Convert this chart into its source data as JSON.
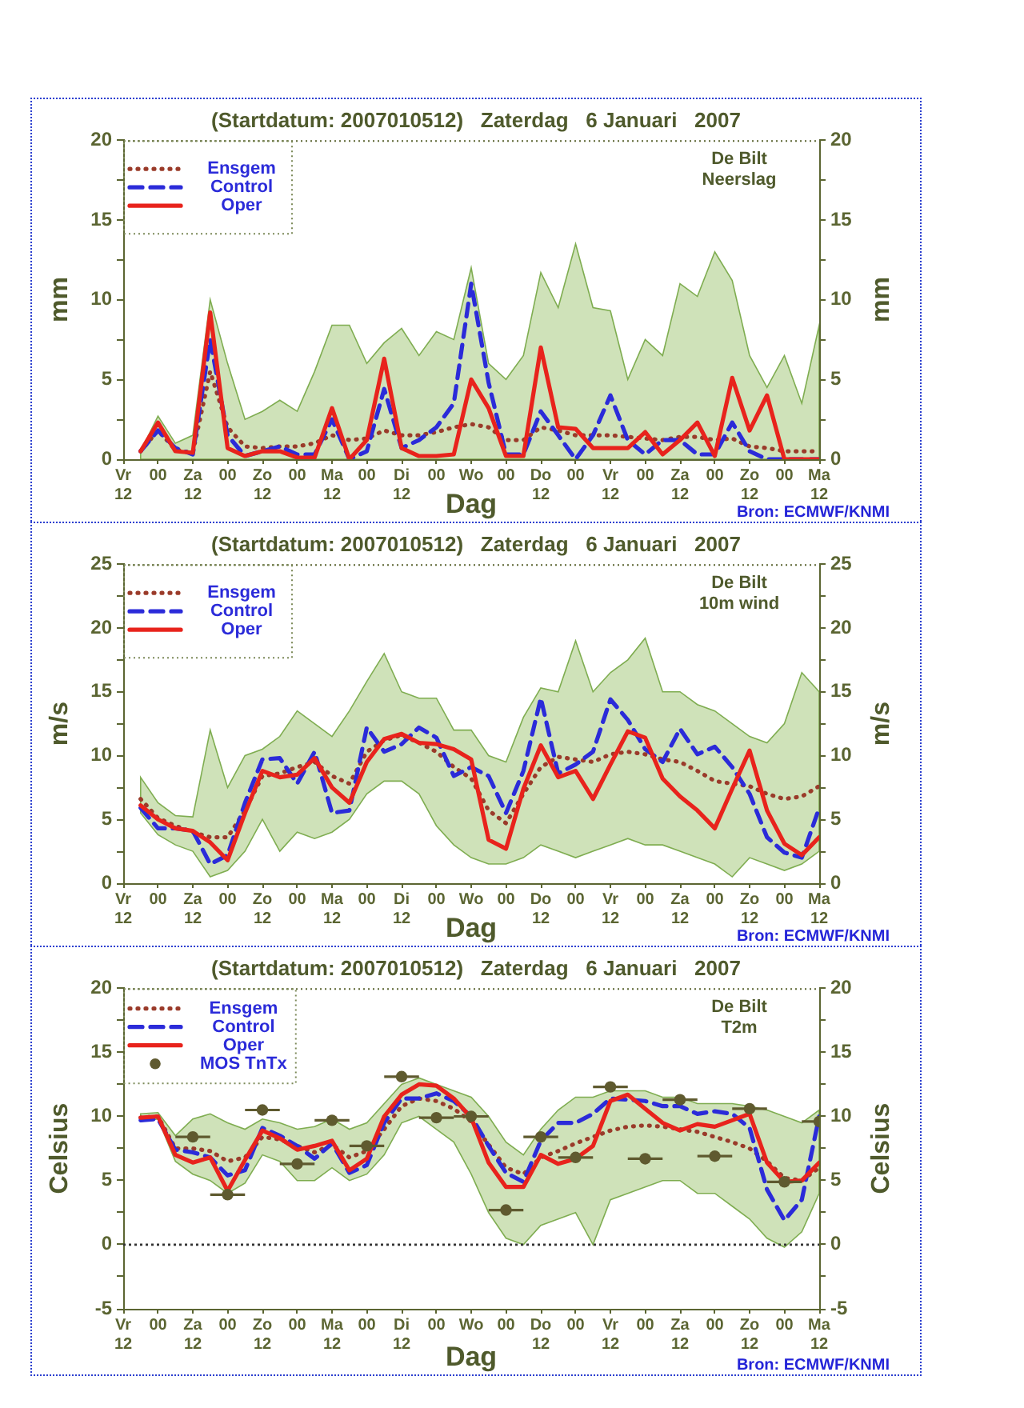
{
  "chart_data": [
    {
      "type": "line",
      "title": "(Startdatum: 2007010512)   Zaterdag   6 Januari   2007",
      "xlabel": "Dag",
      "ylabel": "mm",
      "y2label": "mm",
      "annotations": [
        "De Bilt",
        "Neerslag",
        "Bron: ECMWF/KNMI"
      ],
      "legend": "top left",
      "x": [
        "2007-01-05T18:00",
        "2007-01-06T00:00",
        "2007-01-06T06:00",
        "2007-01-06T12:00",
        "2007-01-06T18:00",
        "2007-01-07T00:00",
        "2007-01-07T06:00",
        "2007-01-07T12:00",
        "2007-01-07T18:00",
        "2007-01-08T00:00",
        "2007-01-08T06:00",
        "2007-01-08T12:00",
        "2007-01-08T18:00",
        "2007-01-09T00:00",
        "2007-01-09T06:00",
        "2007-01-09T12:00",
        "2007-01-09T18:00",
        "2007-01-10T00:00",
        "2007-01-10T06:00",
        "2007-01-10T12:00",
        "2007-01-10T18:00",
        "2007-01-11T00:00",
        "2007-01-11T06:00",
        "2007-01-11T12:00",
        "2007-01-11T18:00",
        "2007-01-12T00:00",
        "2007-01-12T06:00",
        "2007-01-12T12:00",
        "2007-01-12T18:00",
        "2007-01-13T00:00",
        "2007-01-13T06:00",
        "2007-01-13T12:00",
        "2007-01-13T18:00",
        "2007-01-14T00:00",
        "2007-01-14T06:00",
        "2007-01-14T12:00",
        "2007-01-14T18:00",
        "2007-01-15T00:00",
        "2007-01-15T06:00",
        "2007-01-15T12:00"
      ],
      "xlim": [
        "2007-01-05T12:00",
        "2007-01-15T12:00"
      ],
      "xticks": [
        {
          "value": "2007-01-05T12:00",
          "label": "Vr\n12"
        },
        {
          "value": "2007-01-06T00:00",
          "label": "00"
        },
        {
          "value": "2007-01-06T12:00",
          "label": "Za\n12"
        },
        {
          "value": "2007-01-07T00:00",
          "label": "00"
        },
        {
          "value": "2007-01-07T12:00",
          "label": "Zo\n12"
        },
        {
          "value": "2007-01-08T00:00",
          "label": "00"
        },
        {
          "value": "2007-01-08T12:00",
          "label": "Ma\n12"
        },
        {
          "value": "2007-01-09T00:00",
          "label": "00"
        },
        {
          "value": "2007-01-09T12:00",
          "label": "Di\n12"
        },
        {
          "value": "2007-01-10T00:00",
          "label": "00"
        },
        {
          "value": "2007-01-10T12:00",
          "label": "Wo"
        },
        {
          "value": "2007-01-11T00:00",
          "label": "00"
        },
        {
          "value": "2007-01-11T12:00",
          "label": "Do\n12"
        },
        {
          "value": "2007-01-12T00:00",
          "label": "00"
        },
        {
          "value": "2007-01-12T12:00",
          "label": "Vr\n12"
        },
        {
          "value": "2007-01-13T00:00",
          "label": "00"
        },
        {
          "value": "2007-01-13T12:00",
          "label": "Za\n12"
        },
        {
          "value": "2007-01-14T00:00",
          "label": "00"
        },
        {
          "value": "2007-01-14T12:00",
          "label": "Zo\n12"
        },
        {
          "value": "2007-01-15T00:00",
          "label": "00"
        },
        {
          "value": "2007-01-15T12:00",
          "label": "Ma\n12"
        }
      ],
      "ylim": [
        0,
        20
      ],
      "yticks": [
        0,
        {
          "value": 2.5,
          "label": null
        },
        5,
        {
          "value": 7.5,
          "label": null
        },
        10,
        {
          "value": 12.5,
          "label": null
        },
        15,
        {
          "value": 17.5,
          "label": null
        },
        20
      ],
      "y2lim": [
        0,
        20
      ],
      "y2ticks": [
        0,
        {
          "value": 2.5,
          "label": null
        },
        5,
        {
          "value": 7.5,
          "label": null
        },
        10,
        {
          "value": 12.5,
          "label": null
        },
        15,
        {
          "value": 17.5,
          "label": null
        },
        20
      ],
      "series": [
        {
          "name": "Ensgem",
          "color": "#9a3b2a",
          "line_style": "dotted",
          "values": [
            0.5,
            1.8,
            0.6,
            0.4,
            5.5,
            2.0,
            0.8,
            0.7,
            0.8,
            0.8,
            1.0,
            1.5,
            1.2,
            1.3,
            1.8,
            1.5,
            1.5,
            1.7,
            2.0,
            2.2,
            2.0,
            1.2,
            1.2,
            2.0,
            1.8,
            1.5,
            1.5,
            1.5,
            1.4,
            1.3,
            1.2,
            1.4,
            1.4,
            1.2,
            1.3,
            0.8,
            0.7,
            0.5,
            0.5,
            0.5
          ],
          "lower": [
            0,
            0,
            0,
            0,
            0,
            0,
            0,
            0,
            0,
            0,
            0,
            0,
            0,
            0,
            0,
            0,
            0,
            0,
            0,
            0,
            0,
            0,
            0,
            0,
            0,
            0,
            0,
            0,
            0,
            0,
            0,
            0,
            0,
            0,
            0,
            0,
            0,
            0,
            0,
            0
          ],
          "upper": [
            0.5,
            2.7,
            1.0,
            1.5,
            10.0,
            6.0,
            2.5,
            3.0,
            3.7,
            3.0,
            5.5,
            8.4,
            8.4,
            6.0,
            7.3,
            8.2,
            6.5,
            8.0,
            7.5,
            12.0,
            6.0,
            5.0,
            6.5,
            11.7,
            9.5,
            13.5,
            9.5,
            9.3,
            5.0,
            7.5,
            6.5,
            11.0,
            10.2,
            13.0,
            11.2,
            6.5,
            4.5,
            6.5,
            3.5,
            8.4
          ]
        },
        {
          "name": "Control",
          "color": "#2b2bd9",
          "line_style": "dashed",
          "values": [
            0.5,
            1.8,
            0.7,
            0.3,
            7.5,
            1.5,
            0.2,
            0.5,
            0.8,
            0.3,
            0.3,
            2.5,
            0,
            0.5,
            4.4,
            0.7,
            1.2,
            2.0,
            3.5,
            11.0,
            4.8,
            0.3,
            0.3,
            3.0,
            1.5,
            0,
            1.5,
            4.0,
            1.2,
            0.3,
            1.2,
            1.2,
            0.3,
            0.3,
            2.3,
            0.5,
            0,
            0,
            0,
            0
          ]
        },
        {
          "name": "Oper",
          "color": "#e8231c",
          "line_style": "solid",
          "values": [
            0.5,
            2.3,
            0.5,
            0.4,
            9.2,
            0.7,
            0.2,
            0.5,
            0.5,
            0.1,
            0.1,
            3.2,
            0,
            1.2,
            6.3,
            0.7,
            0.2,
            0.2,
            0.3,
            5.0,
            3.2,
            0.2,
            0.2,
            7.0,
            2.0,
            1.9,
            0.7,
            0.7,
            0.7,
            1.7,
            0.3,
            1.2,
            2.3,
            0.2,
            5.1,
            1.8,
            4.0,
            0,
            0,
            0
          ]
        }
      ]
    },
    {
      "type": "line",
      "title": "(Startdatum: 2007010512)   Zaterdag   6 Januari   2007",
      "xlabel": "Dag",
      "ylabel": "m/s",
      "y2label": "m/s",
      "annotations": [
        "De Bilt",
        "10m wind",
        "Bron: ECMWF/KNMI"
      ],
      "legend": "top left",
      "x": [
        "2007-01-05T18:00",
        "2007-01-06T00:00",
        "2007-01-06T06:00",
        "2007-01-06T12:00",
        "2007-01-06T18:00",
        "2007-01-07T00:00",
        "2007-01-07T06:00",
        "2007-01-07T12:00",
        "2007-01-07T18:00",
        "2007-01-08T00:00",
        "2007-01-08T06:00",
        "2007-01-08T12:00",
        "2007-01-08T18:00",
        "2007-01-09T00:00",
        "2007-01-09T06:00",
        "2007-01-09T12:00",
        "2007-01-09T18:00",
        "2007-01-10T00:00",
        "2007-01-10T06:00",
        "2007-01-10T12:00",
        "2007-01-10T18:00",
        "2007-01-11T00:00",
        "2007-01-11T06:00",
        "2007-01-11T12:00",
        "2007-01-11T18:00",
        "2007-01-12T00:00",
        "2007-01-12T06:00",
        "2007-01-12T12:00",
        "2007-01-12T18:00",
        "2007-01-13T00:00",
        "2007-01-13T06:00",
        "2007-01-13T12:00",
        "2007-01-13T18:00",
        "2007-01-14T00:00",
        "2007-01-14T06:00",
        "2007-01-14T12:00",
        "2007-01-14T18:00",
        "2007-01-15T00:00",
        "2007-01-15T06:00",
        "2007-01-15T12:00"
      ],
      "xlim": [
        "2007-01-05T12:00",
        "2007-01-15T12:00"
      ],
      "xticks": [
        {
          "value": "2007-01-05T12:00",
          "label": "Vr\n12"
        },
        {
          "value": "2007-01-06T00:00",
          "label": "00"
        },
        {
          "value": "2007-01-06T12:00",
          "label": "Za\n12"
        },
        {
          "value": "2007-01-07T00:00",
          "label": "00"
        },
        {
          "value": "2007-01-07T12:00",
          "label": "Zo\n12"
        },
        {
          "value": "2007-01-08T00:00",
          "label": "00"
        },
        {
          "value": "2007-01-08T12:00",
          "label": "Ma\n12"
        },
        {
          "value": "2007-01-09T00:00",
          "label": "00"
        },
        {
          "value": "2007-01-09T12:00",
          "label": "Di\n12"
        },
        {
          "value": "2007-01-10T00:00",
          "label": "00"
        },
        {
          "value": "2007-01-10T12:00",
          "label": "Wo"
        },
        {
          "value": "2007-01-11T00:00",
          "label": "00"
        },
        {
          "value": "2007-01-11T12:00",
          "label": "Do\n12"
        },
        {
          "value": "2007-01-12T00:00",
          "label": "00"
        },
        {
          "value": "2007-01-12T12:00",
          "label": "Vr\n12"
        },
        {
          "value": "2007-01-13T00:00",
          "label": "00"
        },
        {
          "value": "2007-01-13T12:00",
          "label": "Za\n12"
        },
        {
          "value": "2007-01-14T00:00",
          "label": "00"
        },
        {
          "value": "2007-01-14T12:00",
          "label": "Zo\n12"
        },
        {
          "value": "2007-01-15T00:00",
          "label": "00"
        },
        {
          "value": "2007-01-15T12:00",
          "label": "Ma\n12"
        }
      ],
      "ylim": [
        0,
        25
      ],
      "yticks": [
        0,
        {
          "value": 2.5,
          "label": null
        },
        5,
        {
          "value": 7.5,
          "label": null
        },
        10,
        {
          "value": 12.5,
          "label": null
        },
        15,
        {
          "value": 17.5,
          "label": null
        },
        20,
        {
          "value": 22.5,
          "label": null
        },
        25
      ],
      "y2lim": [
        0,
        25
      ],
      "y2ticks": [
        0,
        {
          "value": 2.5,
          "label": null
        },
        5,
        {
          "value": 7.5,
          "label": null
        },
        10,
        {
          "value": 12.5,
          "label": null
        },
        15,
        {
          "value": 17.5,
          "label": null
        },
        20,
        {
          "value": 22.5,
          "label": null
        },
        25
      ],
      "series": [
        {
          "name": "Ensgem",
          "color": "#9a3b2a",
          "line_style": "dotted",
          "values": [
            6.6,
            5.1,
            4.5,
            4.0,
            3.6,
            3.6,
            5.7,
            8.4,
            8.6,
            9.1,
            9.5,
            8.4,
            7.8,
            10.3,
            11.2,
            11.6,
            11.0,
            10.3,
            9.1,
            8.2,
            5.7,
            4.7,
            7.0,
            9.1,
            9.9,
            9.7,
            9.5,
            10.1,
            10.3,
            10.1,
            9.7,
            9.5,
            8.8,
            8.0,
            7.8,
            7.6,
            7.0,
            6.6,
            6.8,
            7.6
          ],
          "lower": [
            5.5,
            3.8,
            3.0,
            2.5,
            0.5,
            1.0,
            2.5,
            5.0,
            2.5,
            4.0,
            3.5,
            4.0,
            5.0,
            7.0,
            8.0,
            8.0,
            7.0,
            4.5,
            3.0,
            2.0,
            1.5,
            1.5,
            2.0,
            3.0,
            2.5,
            2.0,
            2.5,
            3.0,
            3.5,
            3.0,
            3.0,
            2.5,
            2.0,
            1.5,
            0.5,
            2.0,
            1.5,
            1.0,
            1.5,
            2.5
          ],
          "upper": [
            8.3,
            6.3,
            5.3,
            5.2,
            12.0,
            7.5,
            10.0,
            10.5,
            11.5,
            13.5,
            12.5,
            11.5,
            13.5,
            15.8,
            18.0,
            15.0,
            14.5,
            14.5,
            12.0,
            12.0,
            10.0,
            9.5,
            13.0,
            15.3,
            15.0,
            19.0,
            15.0,
            16.5,
            17.5,
            19.2,
            15.0,
            15.0,
            14.0,
            13.5,
            12.5,
            11.5,
            11.0,
            12.5,
            16.5,
            15.0
          ]
        },
        {
          "name": "Control",
          "color": "#2b2bd9",
          "line_style": "dashed",
          "values": [
            5.9,
            4.3,
            4.3,
            4.1,
            1.5,
            2.2,
            6.3,
            9.7,
            9.8,
            7.8,
            10.3,
            5.5,
            5.7,
            12.2,
            10.3,
            10.9,
            12.2,
            11.4,
            8.4,
            9.1,
            8.4,
            5.5,
            8.8,
            14.5,
            8.6,
            9.3,
            10.3,
            14.4,
            12.8,
            10.5,
            9.5,
            12.1,
            10.1,
            10.7,
            9.1,
            7.0,
            3.6,
            2.4,
            2.0,
            5.9
          ]
        },
        {
          "name": "Oper",
          "color": "#e8231c",
          "line_style": "solid",
          "values": [
            6.1,
            5.0,
            4.3,
            4.1,
            3.2,
            1.8,
            5.5,
            8.8,
            8.3,
            8.5,
            9.8,
            7.5,
            6.3,
            9.5,
            11.3,
            11.7,
            11.0,
            10.9,
            10.5,
            9.7,
            3.4,
            2.7,
            7.4,
            10.8,
            8.3,
            8.8,
            6.6,
            9.3,
            11.9,
            11.4,
            8.2,
            6.8,
            5.7,
            4.3,
            7.4,
            10.4,
            5.7,
            3.1,
            2.2,
            3.6
          ]
        }
      ]
    },
    {
      "type": "line",
      "title": "(Startdatum: 2007010512)   Zaterdag   6 Januari   2007",
      "xlabel": "Dag",
      "ylabel": "Celsius",
      "y2label": "Celsius",
      "annotations": [
        "De Bilt",
        "T2m",
        "Bron: ECMWF/KNMI"
      ],
      "legend": "top left",
      "x": [
        "2007-01-05T18:00",
        "2007-01-06T00:00",
        "2007-01-06T06:00",
        "2007-01-06T12:00",
        "2007-01-06T18:00",
        "2007-01-07T00:00",
        "2007-01-07T06:00",
        "2007-01-07T12:00",
        "2007-01-07T18:00",
        "2007-01-08T00:00",
        "2007-01-08T06:00",
        "2007-01-08T12:00",
        "2007-01-08T18:00",
        "2007-01-09T00:00",
        "2007-01-09T06:00",
        "2007-01-09T12:00",
        "2007-01-09T18:00",
        "2007-01-10T00:00",
        "2007-01-10T06:00",
        "2007-01-10T12:00",
        "2007-01-10T18:00",
        "2007-01-11T00:00",
        "2007-01-11T06:00",
        "2007-01-11T12:00",
        "2007-01-11T18:00",
        "2007-01-12T00:00",
        "2007-01-12T06:00",
        "2007-01-12T12:00",
        "2007-01-12T18:00",
        "2007-01-13T00:00",
        "2007-01-13T06:00",
        "2007-01-13T12:00",
        "2007-01-13T18:00",
        "2007-01-14T00:00",
        "2007-01-14T06:00",
        "2007-01-14T12:00",
        "2007-01-14T18:00",
        "2007-01-15T00:00",
        "2007-01-15T06:00",
        "2007-01-15T12:00"
      ],
      "xlim": [
        "2007-01-05T12:00",
        "2007-01-15T12:00"
      ],
      "xticks": [
        {
          "value": "2007-01-05T12:00",
          "label": "Vr\n12"
        },
        {
          "value": "2007-01-06T00:00",
          "label": "00"
        },
        {
          "value": "2007-01-06T12:00",
          "label": "Za\n12"
        },
        {
          "value": "2007-01-07T00:00",
          "label": "00"
        },
        {
          "value": "2007-01-07T12:00",
          "label": "Zo\n12"
        },
        {
          "value": "2007-01-08T00:00",
          "label": "00"
        },
        {
          "value": "2007-01-08T12:00",
          "label": "Ma\n12"
        },
        {
          "value": "2007-01-09T00:00",
          "label": "00"
        },
        {
          "value": "2007-01-09T12:00",
          "label": "Di\n12"
        },
        {
          "value": "2007-01-10T00:00",
          "label": "00"
        },
        {
          "value": "2007-01-10T12:00",
          "label": "Wo"
        },
        {
          "value": "2007-01-11T00:00",
          "label": "00"
        },
        {
          "value": "2007-01-11T12:00",
          "label": "Do\n12"
        },
        {
          "value": "2007-01-12T00:00",
          "label": "00"
        },
        {
          "value": "2007-01-12T12:00",
          "label": "Vr\n12"
        },
        {
          "value": "2007-01-13T00:00",
          "label": "00"
        },
        {
          "value": "2007-01-13T12:00",
          "label": "Za\n12"
        },
        {
          "value": "2007-01-14T00:00",
          "label": "00"
        },
        {
          "value": "2007-01-14T12:00",
          "label": "Zo\n12"
        },
        {
          "value": "2007-01-15T00:00",
          "label": "00"
        },
        {
          "value": "2007-01-15T12:00",
          "label": "Ma\n12"
        }
      ],
      "ylim": [
        -5,
        20
      ],
      "yticks": [
        -5,
        {
          "value": -2.5,
          "label": null
        },
        0,
        {
          "value": 2.5,
          "label": null
        },
        5,
        {
          "value": 7.5,
          "label": null
        },
        10,
        {
          "value": 12.5,
          "label": null
        },
        15,
        {
          "value": 17.5,
          "label": null
        },
        20
      ],
      "y2lim": [
        -5,
        20
      ],
      "y2ticks": [
        -5,
        {
          "value": -2.5,
          "label": null
        },
        0,
        {
          "value": 2.5,
          "label": null
        },
        5,
        {
          "value": 7.5,
          "label": null
        },
        10,
        {
          "value": 12.5,
          "label": null
        },
        15,
        {
          "value": 17.5,
          "label": null
        },
        20
      ],
      "ref_lines": [
        {
          "axis": "y",
          "value": 0,
          "color": "#333333",
          "line_style": "dotted"
        }
      ],
      "series": [
        {
          "name": "Ensgem",
          "color": "#9a3b2a",
          "line_style": "dotted",
          "values": [
            9.9,
            10.0,
            7.5,
            7.5,
            7.3,
            6.5,
            6.8,
            8.4,
            8.2,
            7.7,
            7.2,
            7.8,
            6.8,
            7.3,
            9.0,
            10.8,
            11.4,
            11.2,
            10.6,
            9.6,
            7.8,
            6.0,
            5.5,
            6.8,
            7.3,
            7.9,
            8.4,
            8.9,
            9.2,
            9.3,
            9.2,
            9.0,
            8.8,
            8.4,
            8.0,
            7.5,
            6.5,
            5.2,
            5.0,
            6.0
          ],
          "lower": [
            9.6,
            9.8,
            6.5,
            5.5,
            5.0,
            4.0,
            4.8,
            7.0,
            6.5,
            5.0,
            5.0,
            6.0,
            5.0,
            5.5,
            7.0,
            9.5,
            10.0,
            9.0,
            8.0,
            5.5,
            2.5,
            0.5,
            0.0,
            1.5,
            2.0,
            2.5,
            0.0,
            3.5,
            4.0,
            4.5,
            5.0,
            5.0,
            4.0,
            4.0,
            3.0,
            2.0,
            0.5,
            -0.2,
            1.0,
            4.0
          ],
          "upper": [
            10.2,
            10.3,
            8.5,
            9.8,
            10.2,
            9.5,
            9.0,
            9.8,
            9.5,
            9.0,
            9.2,
            9.8,
            9.0,
            9.5,
            11.0,
            12.5,
            13.0,
            12.5,
            12.0,
            11.5,
            10.0,
            8.0,
            7.0,
            9.0,
            10.5,
            11.5,
            11.5,
            12.0,
            12.0,
            12.0,
            11.5,
            11.5,
            11.0,
            11.0,
            11.0,
            10.8,
            10.5,
            10.0,
            9.5,
            10.5
          ]
        },
        {
          "name": "Control",
          "color": "#2b2bd9",
          "line_style": "dashed",
          "values": [
            9.7,
            9.8,
            7.4,
            7.2,
            6.8,
            5.4,
            5.8,
            9.1,
            8.5,
            7.7,
            6.7,
            7.9,
            5.6,
            6.2,
            9.5,
            11.4,
            11.4,
            11.8,
            11.2,
            10.0,
            7.7,
            5.6,
            4.9,
            8.1,
            9.5,
            9.5,
            10.2,
            11.4,
            11.3,
            11.2,
            10.8,
            10.8,
            10.2,
            10.4,
            10.2,
            9.1,
            4.3,
            1.9,
            3.5,
            10.0
          ]
        },
        {
          "name": "Oper",
          "color": "#e8231c",
          "line_style": "solid",
          "values": [
            9.9,
            10.0,
            7.0,
            6.4,
            6.8,
            4.2,
            6.6,
            8.9,
            8.3,
            7.4,
            7.7,
            8.1,
            5.8,
            6.7,
            10.0,
            11.7,
            12.5,
            12.4,
            11.4,
            9.9,
            6.4,
            4.5,
            4.5,
            7.0,
            6.3,
            6.7,
            7.7,
            11.2,
            11.7,
            10.6,
            9.5,
            8.9,
            9.4,
            9.2,
            9.7,
            10.2,
            6.4,
            4.9,
            5.0,
            6.4
          ]
        },
        {
          "name": "MOS TnTx",
          "type": "scatter",
          "marker": "circle",
          "color": "#5f5a2f",
          "x": [
            "2007-01-06T12:00",
            "2007-01-07T00:00",
            "2007-01-07T12:00",
            "2007-01-08T00:00",
            "2007-01-08T12:00",
            "2007-01-09T00:00",
            "2007-01-09T12:00",
            "2007-01-10T00:00",
            "2007-01-10T12:00",
            "2007-01-11T00:00",
            "2007-01-11T12:00",
            "2007-01-12T00:00",
            "2007-01-12T12:00",
            "2007-01-13T00:00",
            "2007-01-13T12:00",
            "2007-01-14T00:00",
            "2007-01-14T12:00",
            "2007-01-15T00:00",
            "2007-01-15T12:00"
          ],
          "values": [
            8.4,
            3.9,
            10.5,
            6.3,
            9.7,
            7.7,
            13.1,
            9.9,
            10.0,
            2.7,
            8.4,
            6.8,
            12.3,
            6.7,
            11.3,
            6.9,
            10.6,
            4.9,
            9.6
          ],
          "xerrors": [
            0.25,
            0.25,
            0.25,
            0.25,
            0.25,
            0.25,
            0.25,
            0.25,
            0.25,
            0.25,
            0.25,
            0.25,
            0.25,
            0.25,
            0.25,
            0.25,
            0.25,
            0.25,
            0.25
          ]
        }
      ]
    }
  ]
}
